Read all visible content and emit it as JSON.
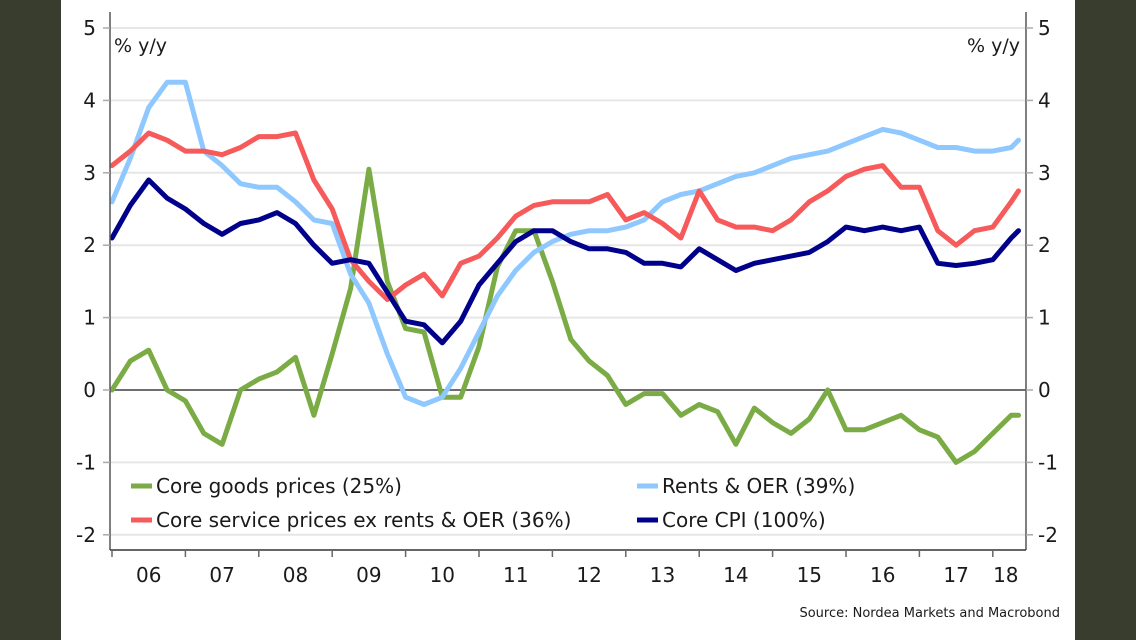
{
  "chart_data": {
    "type": "line",
    "title": "",
    "ylabel_left": "% y/y",
    "ylabel_right": "% y/y",
    "xlabel": "",
    "ylim": [
      -2,
      5
    ],
    "yticks": [
      5,
      4,
      3,
      2,
      1,
      0,
      -1,
      -2
    ],
    "ytick_labels": [
      "5",
      "4",
      "3",
      "2",
      "1",
      "0",
      "-1",
      "-2"
    ],
    "xlim": [
      2006.0,
      2018.45
    ],
    "xtick_years": [
      2006,
      2007,
      2008,
      2009,
      2010,
      2011,
      2012,
      2013,
      2014,
      2015,
      2016,
      2017,
      2018
    ],
    "xtick_labels": [
      "06",
      "07",
      "08",
      "09",
      "10",
      "11",
      "12",
      "13",
      "14",
      "15",
      "16",
      "17",
      "18"
    ],
    "grid": true,
    "legend_placement": "bottom",
    "x": [
      2006.0,
      2006.25,
      2006.5,
      2006.75,
      2007.0,
      2007.25,
      2007.5,
      2007.75,
      2008.0,
      2008.25,
      2008.5,
      2008.75,
      2009.0,
      2009.25,
      2009.5,
      2009.75,
      2010.0,
      2010.25,
      2010.5,
      2010.75,
      2011.0,
      2011.25,
      2011.5,
      2011.75,
      2012.0,
      2012.25,
      2012.5,
      2012.75,
      2013.0,
      2013.25,
      2013.5,
      2013.75,
      2014.0,
      2014.25,
      2014.5,
      2014.75,
      2015.0,
      2015.25,
      2015.5,
      2015.75,
      2016.0,
      2016.25,
      2016.5,
      2016.75,
      2017.0,
      2017.25,
      2017.5,
      2017.75,
      2018.0,
      2018.25,
      2018.35
    ],
    "series": [
      {
        "name": "Core goods prices (25%)",
        "color": "#7aab45",
        "values": [
          0.0,
          0.4,
          0.55,
          0.0,
          -0.15,
          -0.6,
          -0.75,
          0.0,
          0.15,
          0.25,
          0.45,
          -0.35,
          0.5,
          1.4,
          3.05,
          1.5,
          0.85,
          0.8,
          -0.1,
          -0.1,
          0.6,
          1.7,
          2.2,
          2.2,
          1.5,
          0.7,
          0.4,
          0.2,
          -0.2,
          -0.05,
          -0.05,
          -0.35,
          -0.2,
          -0.3,
          -0.75,
          -0.25,
          -0.45,
          -0.6,
          -0.4,
          0.0,
          -0.55,
          -0.55,
          -0.45,
          -0.35,
          -0.55,
          -0.65,
          -1.0,
          -0.85,
          -0.6,
          -0.35,
          -0.35
        ]
      },
      {
        "name": "Rents & OER (39%)",
        "color": "#8ec8ff",
        "values": [
          2.6,
          3.2,
          3.9,
          4.25,
          4.25,
          3.3,
          3.1,
          2.85,
          2.8,
          2.8,
          2.6,
          2.35,
          2.3,
          1.6,
          1.2,
          0.5,
          -0.1,
          -0.2,
          -0.1,
          0.3,
          0.8,
          1.3,
          1.65,
          1.9,
          2.05,
          2.15,
          2.2,
          2.2,
          2.25,
          2.35,
          2.6,
          2.7,
          2.75,
          2.85,
          2.95,
          3.0,
          3.1,
          3.2,
          3.25,
          3.3,
          3.4,
          3.5,
          3.6,
          3.55,
          3.45,
          3.35,
          3.35,
          3.3,
          3.3,
          3.35,
          3.45
        ]
      },
      {
        "name": "Core service prices ex rents & OER (36%)",
        "color": "#f65a5a",
        "values": [
          3.1,
          3.3,
          3.55,
          3.45,
          3.3,
          3.3,
          3.25,
          3.35,
          3.5,
          3.5,
          3.55,
          2.9,
          2.5,
          1.8,
          1.5,
          1.25,
          1.45,
          1.6,
          1.3,
          1.75,
          1.85,
          2.1,
          2.4,
          2.55,
          2.6,
          2.6,
          2.6,
          2.7,
          2.35,
          2.45,
          2.3,
          2.1,
          2.75,
          2.35,
          2.25,
          2.25,
          2.2,
          2.35,
          2.6,
          2.75,
          2.95,
          3.05,
          3.1,
          2.8,
          2.8,
          2.2,
          2.0,
          2.2,
          2.25,
          2.6,
          2.75
        ]
      },
      {
        "name": "Core CPI (100%)",
        "color": "#00008b",
        "values": [
          2.1,
          2.55,
          2.9,
          2.65,
          2.5,
          2.3,
          2.15,
          2.3,
          2.35,
          2.45,
          2.3,
          2.0,
          1.75,
          1.8,
          1.75,
          1.35,
          0.95,
          0.9,
          0.65,
          0.95,
          1.45,
          1.75,
          2.05,
          2.2,
          2.2,
          2.05,
          1.95,
          1.95,
          1.9,
          1.75,
          1.75,
          1.7,
          1.95,
          1.8,
          1.65,
          1.75,
          1.8,
          1.85,
          1.9,
          2.05,
          2.25,
          2.2,
          2.25,
          2.2,
          2.25,
          1.75,
          1.72,
          1.75,
          1.8,
          2.1,
          2.2
        ]
      }
    ],
    "legend": [
      {
        "label": "Core goods prices (25%)",
        "color": "#7aab45"
      },
      {
        "label": "Rents & OER (39%)",
        "color": "#8ec8ff"
      },
      {
        "label": "Core service prices ex rents & OER (36%)",
        "color": "#f65a5a"
      },
      {
        "label": "Core CPI (100%)",
        "color": "#00008b"
      }
    ],
    "source": "Source: Nordea Markets and Macrobond"
  }
}
